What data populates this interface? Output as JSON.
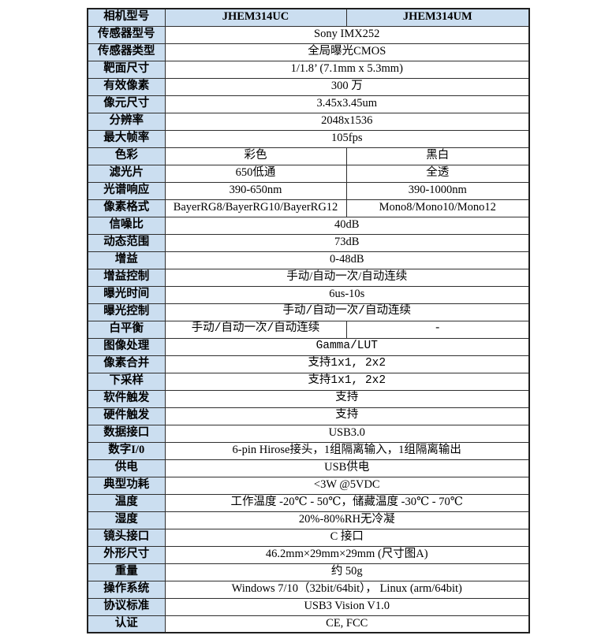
{
  "colors": {
    "header_bg": "#cbdef0",
    "label_bg": "#cbdef0",
    "border": "#2e2e2e",
    "outer_border": "#1f1f1f",
    "text": "#000000",
    "page_bg": "#ffffff"
  },
  "table": {
    "rows": [
      {
        "label": "相机型号",
        "cells": [
          "JHEM314UC",
          "JHEM314UM"
        ],
        "header": true
      },
      {
        "label": "传感器型号",
        "cells": [
          "Sony IMX252"
        ]
      },
      {
        "label": "传感器类型",
        "cells": [
          "全局曝光CMOS"
        ]
      },
      {
        "label": "靶面尺寸",
        "cells": [
          "1/1.8’ (7.1mm x 5.3mm)"
        ]
      },
      {
        "label": "有效像素",
        "cells": [
          "300 万"
        ]
      },
      {
        "label": "像元尺寸",
        "cells": [
          "3.45x3.45um"
        ]
      },
      {
        "label": "分辨率",
        "cells": [
          "2048x1536"
        ]
      },
      {
        "label": "最大帧率",
        "cells": [
          "105fps"
        ]
      },
      {
        "label": "色彩",
        "cells": [
          "彩色",
          "黑白"
        ]
      },
      {
        "label": "滤光片",
        "cells": [
          "650低通",
          "全透"
        ]
      },
      {
        "label": "光谱响应",
        "cells": [
          "390-650nm",
          "390-1000nm"
        ]
      },
      {
        "label": "像素格式",
        "cells": [
          "BayerRG8/BayerRG10/BayerRG12",
          "Mono8/Mono10/Mono12"
        ]
      },
      {
        "label": "信噪比",
        "cells": [
          "40dB"
        ]
      },
      {
        "label": "动态范围",
        "cells": [
          "73dB"
        ]
      },
      {
        "label": "增益",
        "cells": [
          "0-48dB"
        ]
      },
      {
        "label": "增益控制",
        "cells": [
          "手动/自动一次/自动连续"
        ]
      },
      {
        "label": "曝光时间",
        "cells": [
          "6us-10s"
        ]
      },
      {
        "label": "曝光控制",
        "cells": [
          "手动/自动一次/自动连续"
        ],
        "alt": true
      },
      {
        "label": "白平衡",
        "cells": [
          "手动/自动一次/自动连续",
          "-"
        ],
        "alt": true
      },
      {
        "label": "图像处理",
        "cells": [
          "Gamma/LUT"
        ],
        "alt": true
      },
      {
        "label": "像素合并",
        "cells": [
          "支持1x1, 2x2"
        ],
        "alt": true
      },
      {
        "label": "下采样",
        "cells": [
          "支持1x1, 2x2"
        ],
        "alt": true
      },
      {
        "label": "软件触发",
        "cells": [
          "支持"
        ],
        "alt": true
      },
      {
        "label": "硬件触发",
        "cells": [
          "支持"
        ],
        "alt": true
      },
      {
        "label": "数据接口",
        "cells": [
          "USB3.0"
        ]
      },
      {
        "label": "数字I/0",
        "cells": [
          "6-pin Hirose接头，1组隔离输入，1组隔离输出"
        ]
      },
      {
        "label": "供电",
        "cells": [
          "USB供电"
        ]
      },
      {
        "label": "典型功耗",
        "cells": [
          "<3W @5VDC"
        ]
      },
      {
        "label": "温度",
        "cells": [
          "工作温度 -20℃ - 50℃，储藏温度 -30℃ - 70℃"
        ]
      },
      {
        "label": "湿度",
        "cells": [
          "20%-80%RH无冷凝"
        ]
      },
      {
        "label": "镜头接口",
        "cells": [
          "C 接口"
        ]
      },
      {
        "label": "外形尺寸",
        "cells": [
          "46.2mm×29mm×29mm (尺寸图A)"
        ]
      },
      {
        "label": "重量",
        "cells": [
          "约 50g"
        ]
      },
      {
        "label": "操作系统",
        "cells": [
          "Windows 7/10（32bit/64bit）， Linux (arm/64bit)"
        ]
      },
      {
        "label": "协议标准",
        "cells": [
          "USB3 Vision V1.0"
        ]
      },
      {
        "label": "认证",
        "cells": [
          "CE, FCC"
        ]
      }
    ]
  }
}
